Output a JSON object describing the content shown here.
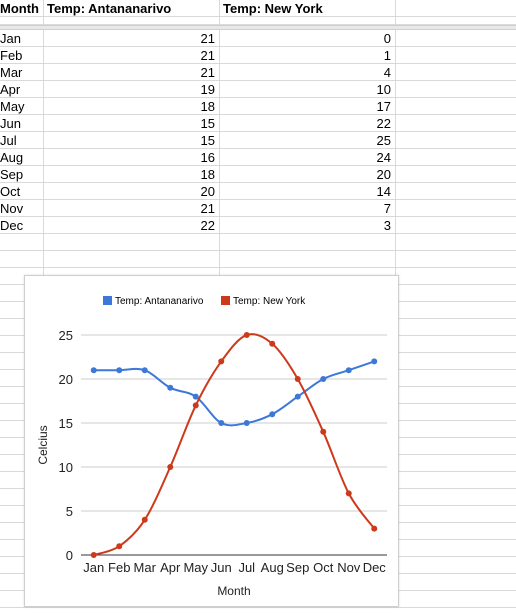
{
  "sheet": {
    "headers": [
      "Month",
      "Temp: Antananarivo",
      "Temp: New York"
    ],
    "rows": [
      {
        "month": "Jan",
        "ant": "21",
        "ny": "0"
      },
      {
        "month": "Feb",
        "ant": "21",
        "ny": "1"
      },
      {
        "month": "Mar",
        "ant": "21",
        "ny": "4"
      },
      {
        "month": "Apr",
        "ant": "19",
        "ny": "10"
      },
      {
        "month": "May",
        "ant": "18",
        "ny": "17"
      },
      {
        "month": "Jun",
        "ant": "15",
        "ny": "22"
      },
      {
        "month": "Jul",
        "ant": "15",
        "ny": "25"
      },
      {
        "month": "Aug",
        "ant": "16",
        "ny": "24"
      },
      {
        "month": "Sep",
        "ant": "18",
        "ny": "20"
      },
      {
        "month": "Oct",
        "ant": "20",
        "ny": "14"
      },
      {
        "month": "Nov",
        "ant": "21",
        "ny": "7"
      },
      {
        "month": "Dec",
        "ant": "22",
        "ny": "3"
      }
    ]
  },
  "chart_data": {
    "type": "line",
    "categories": [
      "Jan",
      "Feb",
      "Mar",
      "Apr",
      "May",
      "Jun",
      "Jul",
      "Aug",
      "Sep",
      "Oct",
      "Nov",
      "Dec"
    ],
    "series": [
      {
        "name": "Temp: Antananarivo",
        "color": "#3c78d8",
        "values": [
          21,
          21,
          21,
          19,
          18,
          15,
          15,
          16,
          18,
          20,
          21,
          22
        ]
      },
      {
        "name": "Temp: New York",
        "color": "#cc3a1b",
        "values": [
          0,
          1,
          4,
          10,
          17,
          22,
          25,
          24,
          20,
          14,
          7,
          3
        ]
      }
    ],
    "xlabel": "Month",
    "ylabel": "Celcius",
    "ylim": [
      0,
      25
    ],
    "yticks": [
      "0",
      "5",
      "10",
      "15",
      "20",
      "25"
    ],
    "grid": true,
    "legend_position": "top",
    "smooth": true
  }
}
